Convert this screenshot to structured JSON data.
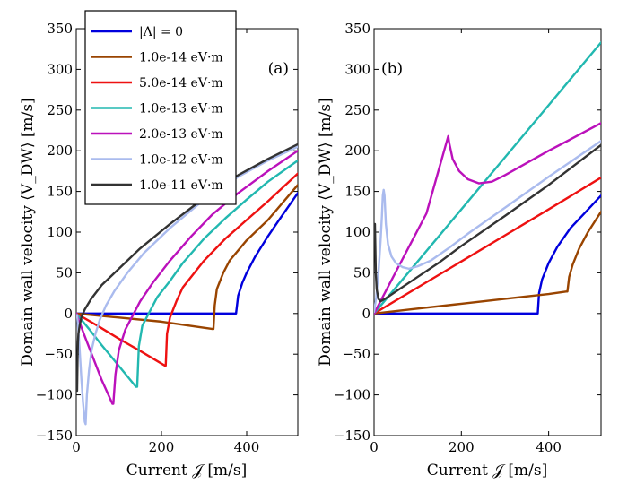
{
  "chart_data": [
    {
      "type": "line",
      "panel_label": "(a)",
      "xlabel": "Current 𝒥 [m/s]",
      "ylabel": "Domain wall velocity ⟨V_DW⟩ [m/s]",
      "xlim": [
        0,
        520
      ],
      "ylim": [
        -150,
        350
      ],
      "xticks": [
        0,
        200,
        400
      ],
      "yticks": [
        -150,
        -100,
        -50,
        0,
        50,
        100,
        150,
        200,
        250,
        300,
        350
      ],
      "legend": {
        "position": "top-left"
      },
      "series": [
        {
          "name": "|Λ| = 0",
          "color": "#0000dd",
          "points": [
            [
              0,
              0
            ],
            [
              375,
              0
            ],
            [
              375,
              0
            ],
            [
              380,
              22
            ],
            [
              390,
              38
            ],
            [
              400,
              50
            ],
            [
              420,
              70
            ],
            [
              450,
              95
            ],
            [
              480,
              118
            ],
            [
              520,
              148
            ]
          ]
        },
        {
          "name": "1.0e-14 eV·m",
          "color": "#994400",
          "points": [
            [
              0,
              0
            ],
            [
              100,
              -5
            ],
            [
              200,
              -10
            ],
            [
              320,
              -19
            ],
            [
              322,
              -19
            ],
            [
              325,
              10
            ],
            [
              330,
              30
            ],
            [
              345,
              50
            ],
            [
              360,
              65
            ],
            [
              400,
              90
            ],
            [
              450,
              115
            ],
            [
              520,
              158
            ]
          ]
        },
        {
          "name": "5.0e-14 eV·m",
          "color": "#ee1111",
          "points": [
            [
              0,
              0
            ],
            [
              50,
              -15
            ],
            [
              100,
              -31
            ],
            [
              150,
              -46
            ],
            [
              208,
              -64
            ],
            [
              210,
              -64
            ],
            [
              213,
              -25
            ],
            [
              220,
              -5
            ],
            [
              235,
              15
            ],
            [
              250,
              32
            ],
            [
              300,
              65
            ],
            [
              350,
              92
            ],
            [
              400,
              115
            ],
            [
              450,
              138
            ],
            [
              520,
              172
            ]
          ]
        },
        {
          "name": "1.0e-13 eV·m",
          "color": "#22b8b0",
          "points": [
            [
              0,
              0
            ],
            [
              30,
              -19
            ],
            [
              60,
              -39
            ],
            [
              90,
              -58
            ],
            [
              140,
              -90
            ],
            [
              143,
              -90
            ],
            [
              147,
              -40
            ],
            [
              155,
              -15
            ],
            [
              170,
              0
            ],
            [
              190,
              20
            ],
            [
              220,
              40
            ],
            [
              250,
              62
            ],
            [
              300,
              92
            ],
            [
              350,
              117
            ],
            [
              400,
              140
            ],
            [
              450,
              162
            ],
            [
              520,
              188
            ]
          ]
        },
        {
          "name": "2.0e-13 eV·m",
          "color": "#bb11bb",
          "points": [
            [
              0,
              0
            ],
            [
              20,
              -28
            ],
            [
              40,
              -55
            ],
            [
              60,
              -82
            ],
            [
              85,
              -111
            ],
            [
              87,
              -111
            ],
            [
              92,
              -75
            ],
            [
              100,
              -45
            ],
            [
              115,
              -20
            ],
            [
              130,
              -5
            ],
            [
              150,
              15
            ],
            [
              180,
              38
            ],
            [
              220,
              65
            ],
            [
              270,
              95
            ],
            [
              320,
              122
            ],
            [
              380,
              148
            ],
            [
              450,
              175
            ],
            [
              520,
              200
            ]
          ]
        },
        {
          "name": "1.0e-12 eV·m",
          "color": "#aabbee",
          "points": [
            [
              2,
              -2
            ],
            [
              5,
              -20
            ],
            [
              8,
              -45
            ],
            [
              12,
              -80
            ],
            [
              16,
              -110
            ],
            [
              20,
              -133
            ],
            [
              22,
              -136
            ],
            [
              25,
              -100
            ],
            [
              30,
              -70
            ],
            [
              36,
              -45
            ],
            [
              45,
              -25
            ],
            [
              55,
              -8
            ],
            [
              70,
              10
            ],
            [
              90,
              28
            ],
            [
              120,
              50
            ],
            [
              160,
              75
            ],
            [
              220,
              105
            ],
            [
              300,
              140
            ],
            [
              380,
              168
            ],
            [
              450,
              188
            ],
            [
              520,
              205
            ]
          ]
        },
        {
          "name": "1.0e-11 eV·m",
          "color": "#333333",
          "points": [
            [
              2,
              -95
            ],
            [
              3,
              -60
            ],
            [
              4,
              -35
            ],
            [
              5,
              -25
            ],
            [
              8,
              -15
            ],
            [
              12,
              -5
            ],
            [
              20,
              5
            ],
            [
              35,
              18
            ],
            [
              60,
              35
            ],
            [
              100,
              55
            ],
            [
              150,
              80
            ],
            [
              220,
              110
            ],
            [
              300,
              142
            ],
            [
              380,
              170
            ],
            [
              450,
              190
            ],
            [
              520,
              208
            ]
          ]
        }
      ]
    },
    {
      "type": "line",
      "panel_label": "(b)",
      "xlabel": "Current 𝒥 [m/s]",
      "ylabel": "Domain wall velocity ⟨V_DW⟩ [m/s]",
      "xlim": [
        0,
        520
      ],
      "ylim": [
        -150,
        350
      ],
      "xticks": [
        0,
        200,
        400
      ],
      "yticks": [
        -150,
        -100,
        -50,
        0,
        50,
        100,
        150,
        200,
        250,
        300,
        350
      ],
      "series": [
        {
          "name": "|Λ| = 0",
          "color": "#0000dd",
          "points": [
            [
              0,
              0
            ],
            [
              375,
              0
            ],
            [
              378,
              25
            ],
            [
              385,
              42
            ],
            [
              400,
              62
            ],
            [
              420,
              82
            ],
            [
              450,
              105
            ],
            [
              480,
              122
            ],
            [
              520,
              145
            ]
          ]
        },
        {
          "name": "1.0e-14 eV·m",
          "color": "#994400",
          "points": [
            [
              0,
              0
            ],
            [
              100,
              6
            ],
            [
              200,
              12
            ],
            [
              300,
              18
            ],
            [
              400,
              24
            ],
            [
              440,
              27
            ],
            [
              443,
              27
            ],
            [
              447,
              45
            ],
            [
              455,
              60
            ],
            [
              470,
              80
            ],
            [
              490,
              100
            ],
            [
              520,
              125
            ]
          ]
        },
        {
          "name": "5.0e-14 eV·m",
          "color": "#ee1111",
          "points": [
            [
              0,
              0
            ],
            [
              100,
              32
            ],
            [
              200,
              64
            ],
            [
              300,
              96
            ],
            [
              400,
              128
            ],
            [
              520,
              167
            ]
          ]
        },
        {
          "name": "1.0e-13 eV·m",
          "color": "#22b8b0",
          "points": [
            [
              0,
              0
            ],
            [
              100,
              64
            ],
            [
              200,
              128
            ],
            [
              300,
              192
            ],
            [
              400,
              256
            ],
            [
              520,
              333
            ]
          ]
        },
        {
          "name": "2.0e-13 eV·m",
          "color": "#bb11bb",
          "points": [
            [
              0,
              0
            ],
            [
              40,
              41
            ],
            [
              80,
              82
            ],
            [
              120,
              123
            ],
            [
              170,
              218
            ],
            [
              172,
              210
            ],
            [
              180,
              190
            ],
            [
              195,
              175
            ],
            [
              215,
              165
            ],
            [
              240,
              160
            ],
            [
              270,
              162
            ],
            [
              300,
              170
            ],
            [
              350,
              185
            ],
            [
              400,
              200
            ],
            [
              450,
              214
            ],
            [
              520,
              234
            ]
          ]
        },
        {
          "name": "1.0e-12 eV·m",
          "color": "#aabbee",
          "points": [
            [
              0,
              2
            ],
            [
              5,
              20
            ],
            [
              10,
              50
            ],
            [
              15,
              90
            ],
            [
              18,
              120
            ],
            [
              20,
              145
            ],
            [
              22,
              152
            ],
            [
              24,
              145
            ],
            [
              27,
              110
            ],
            [
              32,
              85
            ],
            [
              40,
              70
            ],
            [
              50,
              62
            ],
            [
              65,
              57
            ],
            [
              80,
              55
            ],
            [
              100,
              58
            ],
            [
              130,
              65
            ],
            [
              170,
              80
            ],
            [
              220,
              100
            ],
            [
              300,
              130
            ],
            [
              400,
              168
            ],
            [
              520,
              212
            ]
          ]
        },
        {
          "name": "1.0e-11 eV·m",
          "color": "#333333",
          "points": [
            [
              2,
              110
            ],
            [
              3,
              80
            ],
            [
              4,
              50
            ],
            [
              6,
              30
            ],
            [
              10,
              18
            ],
            [
              15,
              15
            ],
            [
              25,
              18
            ],
            [
              50,
              27
            ],
            [
              100,
              45
            ],
            [
              150,
              63
            ],
            [
              200,
              83
            ],
            [
              300,
              120
            ],
            [
              400,
              158
            ],
            [
              520,
              207
            ]
          ]
        }
      ]
    }
  ]
}
